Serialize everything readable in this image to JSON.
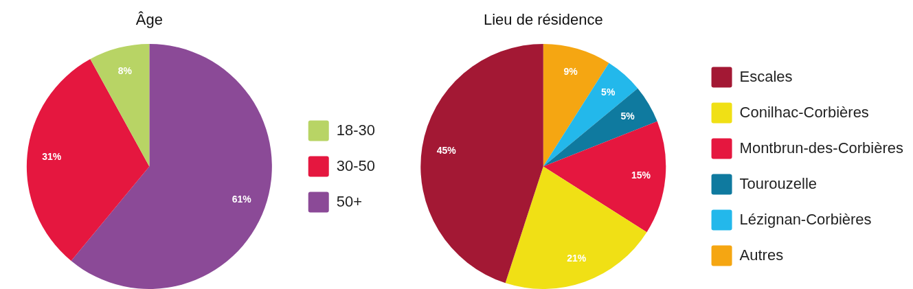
{
  "chart_data": [
    {
      "type": "pie",
      "title": "Âge",
      "categories": [
        "18-30",
        "30-50",
        "50+"
      ],
      "values": [
        8,
        31,
        61
      ],
      "value_labels": [
        "8%",
        "31%",
        "61%"
      ],
      "colors": [
        "#b8d465",
        "#e5173f",
        "#8b4a97"
      ],
      "legend": "right"
    },
    {
      "type": "pie",
      "title": "Lieu de résidence",
      "categories": [
        "Escales",
        "Conilhac-Corbières",
        "Montbrun-des-Corbières",
        "Tourouzelle",
        "Lézignan-Corbières",
        "Autres"
      ],
      "values": [
        45,
        21,
        15,
        5,
        5,
        9
      ],
      "value_labels": [
        "45%",
        "21%",
        "15%",
        "5%",
        "5%",
        "9%"
      ],
      "colors": [
        "#a31834",
        "#f0e015",
        "#e5173f",
        "#0f7a9f",
        "#23b8eb",
        "#f5a612"
      ],
      "legend": "right"
    }
  ]
}
